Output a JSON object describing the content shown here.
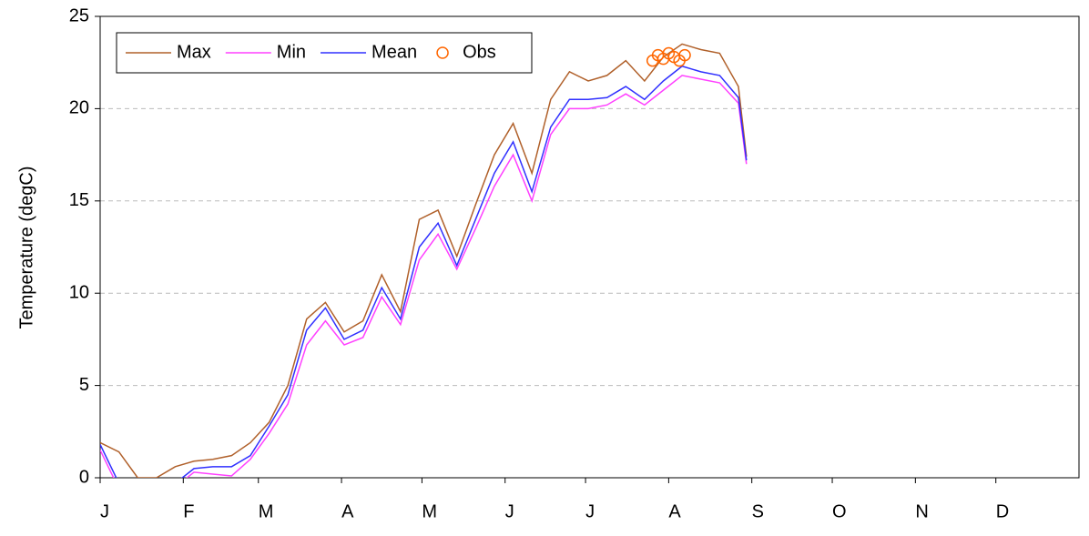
{
  "chart_data": {
    "type": "line",
    "y_label": "Temperature (degC)",
    "x": [
      1,
      8,
      15,
      22,
      29,
      36,
      43,
      50,
      57,
      64,
      71,
      78,
      85,
      92,
      99,
      106,
      113,
      120,
      127,
      134,
      141,
      148,
      155,
      162,
      169,
      176,
      183,
      190,
      197,
      204,
      211,
      218,
      225,
      232,
      239,
      242
    ],
    "series": [
      {
        "name": "Max",
        "color": "#b0602a",
        "values": [
          1.9,
          1.4,
          0,
          0,
          0.6,
          0.9,
          1.0,
          1.2,
          1.9,
          3.0,
          5.0,
          8.6,
          9.5,
          7.9,
          8.5,
          11.0,
          9.0,
          14.0,
          14.5,
          12.0,
          14.8,
          17.5,
          19.2,
          16.5,
          20.5,
          22.0,
          21.5,
          21.8,
          22.6,
          21.5,
          22.8,
          23.5,
          23.2,
          23.0,
          21.2,
          17.4
        ]
      },
      {
        "name": "Min",
        "color": "#ff40ff",
        "values": [
          1.5,
          -0.6,
          -0.8,
          -0.8,
          -0.5,
          0.3,
          0.2,
          0.1,
          1.0,
          2.4,
          4.0,
          7.2,
          8.5,
          7.2,
          7.6,
          9.8,
          8.3,
          11.8,
          13.2,
          11.3,
          13.5,
          15.8,
          17.5,
          15.0,
          18.6,
          20.0,
          20.0,
          20.2,
          20.8,
          20.2,
          21.0,
          21.8,
          21.6,
          21.4,
          20.3,
          17.0
        ]
      },
      {
        "name": "Mean",
        "color": "#3030ff",
        "values": [
          1.8,
          -0.3,
          -0.5,
          -0.5,
          -0.3,
          0.5,
          0.6,
          0.6,
          1.2,
          2.8,
          4.5,
          8.0,
          9.2,
          7.5,
          8.0,
          10.3,
          8.6,
          12.5,
          13.8,
          11.5,
          14.0,
          16.5,
          18.2,
          15.5,
          19.0,
          20.5,
          20.5,
          20.6,
          21.2,
          20.5,
          21.5,
          22.3,
          22.0,
          21.8,
          20.6,
          17.2
        ]
      }
    ],
    "obs": {
      "name": "Obs",
      "color": "#ff6600",
      "x": [
        207,
        209,
        211,
        213,
        215,
        217,
        219
      ],
      "values": [
        22.6,
        22.9,
        22.7,
        23.0,
        22.8,
        22.6,
        22.9
      ]
    },
    "xlim": [
      1,
      366
    ],
    "xticks": [
      {
        "value": 1,
        "label": "J"
      },
      {
        "value": 32,
        "label": "F"
      },
      {
        "value": 60,
        "label": "M"
      },
      {
        "value": 91,
        "label": "A"
      },
      {
        "value": 121,
        "label": "M"
      },
      {
        "value": 152,
        "label": "J"
      },
      {
        "value": 182,
        "label": "J"
      },
      {
        "value": 213,
        "label": "A"
      },
      {
        "value": 244,
        "label": "S"
      },
      {
        "value": 274,
        "label": "O"
      },
      {
        "value": 305,
        "label": "N"
      },
      {
        "value": 335,
        "label": "D"
      }
    ],
    "ylim": [
      0,
      25
    ],
    "yticks": [
      0,
      5,
      10,
      15,
      20,
      25
    ],
    "grid": true
  }
}
